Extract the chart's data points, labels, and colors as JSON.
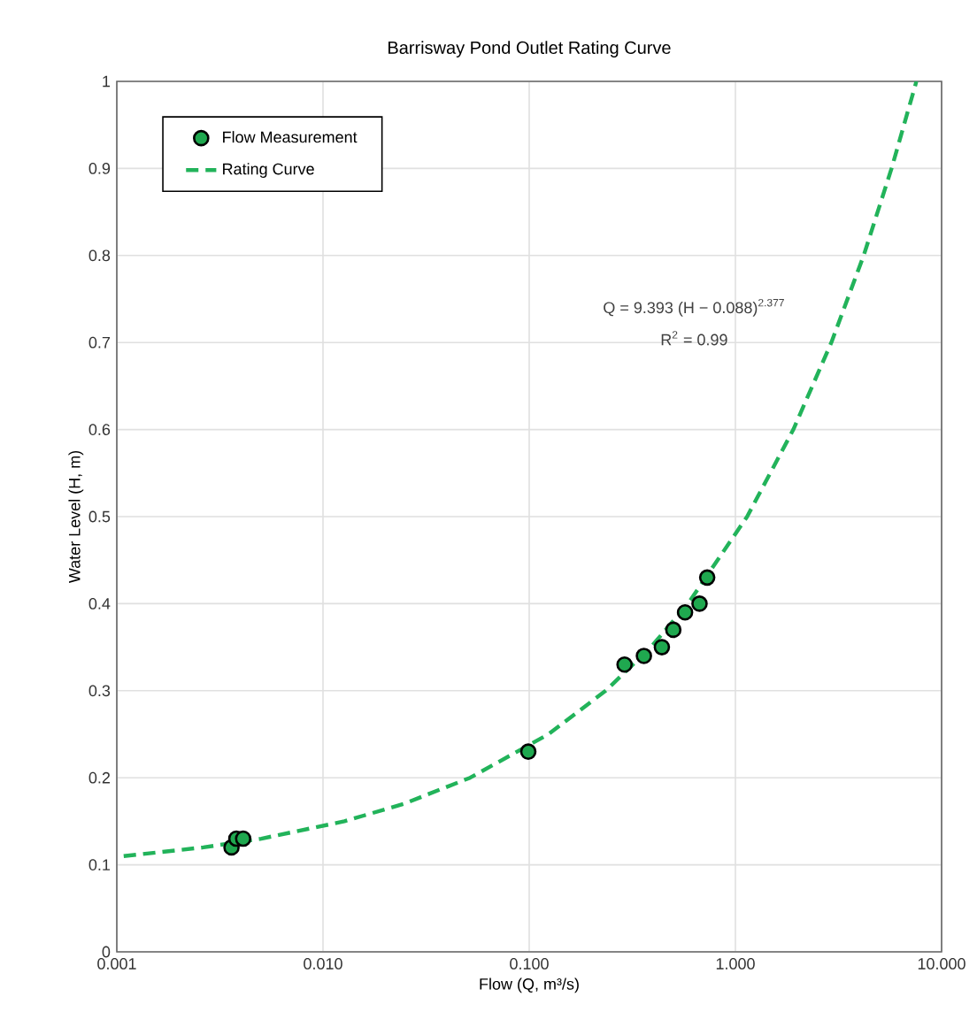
{
  "chart_data": {
    "type": "scatter",
    "title": "Barrisway Pond Outlet Rating Curve",
    "xlabel": "Flow (Q, m³/s)",
    "ylabel": "Water Level (H, m)",
    "log": "x",
    "grid": true,
    "legend": "top left",
    "xlim": [
      0.001,
      10
    ],
    "ylim": [
      0,
      1
    ],
    "xticks": [
      {
        "value": 0.001,
        "label": "0.001"
      },
      {
        "value": 0.01,
        "label": "0.010"
      },
      {
        "value": 0.1,
        "label": "0.100"
      },
      {
        "value": 1,
        "label": "1.000"
      },
      {
        "value": 10,
        "label": "10.000"
      }
    ],
    "yticks": [
      0,
      0.1,
      0.2,
      0.3,
      0.4,
      0.5,
      0.6,
      0.7,
      0.8,
      0.9,
      1
    ],
    "annotations": [
      "Q = 9.393 (H − 0.088)$^{2.377}$",
      "R$^{2}$ = 0.99"
    ],
    "series": [
      {
        "name": "Flow Measurement",
        "marker": "circle",
        "color": "#1fa84f",
        "x": [
          0.0036,
          0.0038,
          0.0041,
          0.099,
          0.29,
          0.36,
          0.44,
          0.5,
          0.57,
          0.67,
          0.73
        ],
        "values": [
          0.12,
          0.13,
          0.13,
          0.23,
          0.33,
          0.34,
          0.35,
          0.37,
          0.39,
          0.4,
          0.43
        ]
      },
      {
        "name": "Rating Curve",
        "type": "line",
        "marker": "none",
        "line_style": "dashed",
        "color": "#22b35a",
        "x": [
          0.00108,
          0.00263,
          0.00502,
          0.0127,
          0.0246,
          0.0517,
          0.124,
          0.235,
          0.389,
          0.589,
          1.14,
          1.91,
          2.92,
          4.19,
          5.72,
          7.55
        ],
        "values": [
          0.11,
          0.12,
          0.13,
          0.15,
          0.17,
          0.2,
          0.25,
          0.3,
          0.35,
          0.4,
          0.5,
          0.6,
          0.7,
          0.8,
          0.9,
          1.0
        ]
      }
    ]
  }
}
